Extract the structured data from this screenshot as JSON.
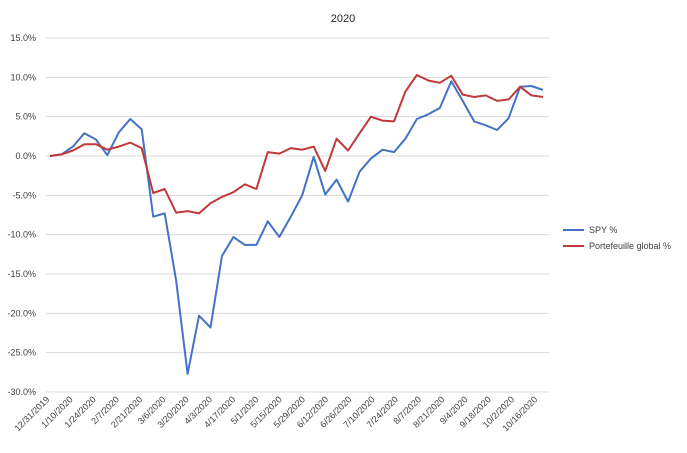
{
  "chart_data": {
    "type": "line",
    "title": "2020",
    "xlabel": "",
    "ylabel": "",
    "ylim": [
      -0.3,
      0.15
    ],
    "y_ticks": [
      "15.0%",
      "10.0%",
      "5.0%",
      "0.0%",
      "-5.0%",
      "-10.0%",
      "-15.0%",
      "-20.0%",
      "-25.0%",
      "-30.0%"
    ],
    "x_tick_labels": [
      "12/31/2019",
      "1/10/2020",
      "1/24/2020",
      "2/7/2020",
      "2/21/2020",
      "3/6/2020",
      "3/20/2020",
      "4/3/2020",
      "4/17/2020",
      "5/1/2020",
      "5/15/2020",
      "5/29/2020",
      "6/12/2020",
      "6/26/2020",
      "7/10/2020",
      "7/24/2020",
      "8/7/2020",
      "8/21/2020",
      "9/4/2020",
      "9/18/2020",
      "10/2/2020",
      "10/16/2020"
    ],
    "grid": "horizontal",
    "legend_position": "right",
    "series": [
      {
        "name": "SPY %",
        "color": "#4472c4",
        "values": [
          0.0,
          0.002,
          0.012,
          0.029,
          0.021,
          0.001,
          0.03,
          0.047,
          0.034,
          -0.077,
          -0.073,
          -0.158,
          -0.277,
          -0.203,
          -0.218,
          -0.127,
          -0.103,
          -0.113,
          -0.113,
          -0.083,
          -0.103,
          -0.077,
          -0.05,
          -0.001,
          -0.049,
          -0.03,
          -0.058,
          -0.02,
          -0.003,
          0.008,
          0.005,
          0.022,
          0.047,
          0.053,
          0.061,
          0.095,
          0.07,
          0.044,
          0.039,
          0.033,
          0.048,
          0.088,
          0.089,
          0.084
        ]
      },
      {
        "name": "Portefeuille global %",
        "color": "#c0393b",
        "values": [
          0.0,
          0.002,
          0.007,
          0.015,
          0.015,
          0.008,
          0.012,
          0.017,
          0.01,
          -0.047,
          -0.042,
          -0.072,
          -0.07,
          -0.073,
          -0.06,
          -0.052,
          -0.046,
          -0.036,
          -0.042,
          0.005,
          0.003,
          0.01,
          0.008,
          0.012,
          -0.019,
          0.022,
          0.007,
          0.029,
          0.05,
          0.045,
          0.044,
          0.082,
          0.103,
          0.096,
          0.093,
          0.102,
          0.078,
          0.075,
          0.077,
          0.07,
          0.072,
          0.088,
          0.077,
          0.075
        ]
      }
    ]
  }
}
